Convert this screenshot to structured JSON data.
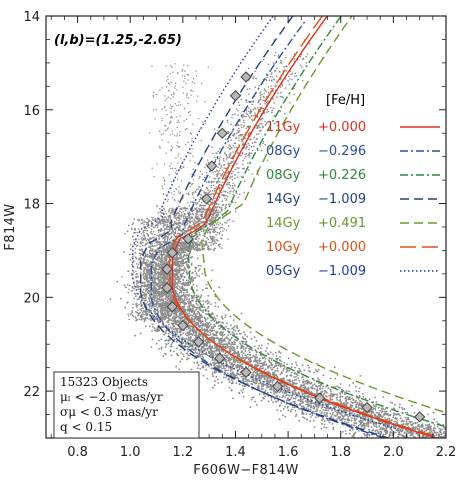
{
  "chart_data": {
    "type": "scatter",
    "title": "",
    "xlabel": "F606W−F814W",
    "ylabel": "F814W",
    "xlim": [
      0.68,
      2.2
    ],
    "ylim": [
      23.0,
      14.0
    ],
    "y_inverted": true,
    "x_ticks": [
      "0.8",
      "1.0",
      "1.2",
      "1.4",
      "1.6",
      "1.8",
      "2.0",
      "2.2"
    ],
    "y_ticks": [
      "14",
      "16",
      "18",
      "20",
      "22"
    ],
    "field_label": "(l,b)=(1.25,-2.65)",
    "table_header": "[Fe/H]",
    "isochrones": [
      {
        "age": "11Gy",
        "feh": "+0.000",
        "color": "#e03020",
        "style": "solid"
      },
      {
        "age": "08Gy",
        "feh": "−0.296",
        "color": "#2a4fa0",
        "style": "dashdot"
      },
      {
        "age": "08Gy",
        "feh": "+0.226",
        "color": "#2f8a3a",
        "style": "dashdot"
      },
      {
        "age": "14Gy",
        "feh": "−1.009",
        "color": "#23407a",
        "style": "dash"
      },
      {
        "age": "14Gy",
        "feh": "+0.491",
        "color": "#6a9a2a",
        "style": "dash"
      },
      {
        "age": "10Gy",
        "feh": "+0.000",
        "color": "#e05010",
        "style": "longdash"
      },
      {
        "age": "05Gy",
        "feh": "−1.009",
        "color": "#1f3d9a",
        "style": "dotted"
      }
    ],
    "ridge_line": [
      {
        "x": 1.22,
        "y": 18.75
      },
      {
        "x": 1.16,
        "y": 19.05
      },
      {
        "x": 1.14,
        "y": 19.4
      },
      {
        "x": 1.14,
        "y": 19.8
      },
      {
        "x": 1.16,
        "y": 20.2
      },
      {
        "x": 1.2,
        "y": 20.6
      },
      {
        "x": 1.26,
        "y": 20.95
      },
      {
        "x": 1.34,
        "y": 21.3
      },
      {
        "x": 1.44,
        "y": 21.6
      },
      {
        "x": 1.56,
        "y": 21.9
      },
      {
        "x": 1.72,
        "y": 22.15
      },
      {
        "x": 1.9,
        "y": 22.35
      },
      {
        "x": 2.1,
        "y": 22.55
      },
      {
        "x": 1.29,
        "y": 17.9
      },
      {
        "x": 1.31,
        "y": 17.2
      },
      {
        "x": 1.35,
        "y": 16.5
      },
      {
        "x": 1.4,
        "y": 15.7
      },
      {
        "x": 1.44,
        "y": 15.3
      }
    ],
    "stats": {
      "objects": "15323 Objects",
      "mu_l": "μₗ <   −2.0 mas/yr",
      "sigma_mu": "σμ <    0.3 mas/yr",
      "q": "q  <    0.15"
    }
  },
  "colors": {
    "points": "#8c8c8c",
    "ridge_fill": "#b8b8b8",
    "ridge_edge": "#444444"
  }
}
